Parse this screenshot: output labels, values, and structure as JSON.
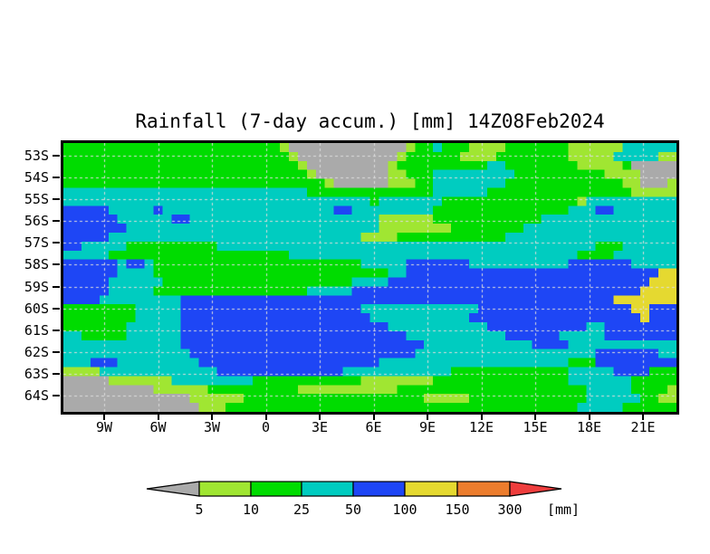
{
  "title": "Rainfall (7-day accum.) [mm] 14Z08Feb2024",
  "chart_data": {
    "type": "heatmap",
    "title": "Rainfall (7-day accum.) [mm] 14Z08Feb2024",
    "variable": "Rainfall (7-day accum.)",
    "units": "mm",
    "valid_time": "14Z08Feb2024",
    "x_axis": {
      "ticks": [
        "9W",
        "6W",
        "3W",
        "0",
        "3E",
        "6E",
        "9E",
        "12E",
        "15E",
        "18E",
        "21E"
      ],
      "range_deg_lon": [
        -11.3,
        22.9
      ]
    },
    "y_axis": {
      "ticks": [
        "53S",
        "54S",
        "55S",
        "56S",
        "57S",
        "58S",
        "59S",
        "60S",
        "61S",
        "62S",
        "63S",
        "64S"
      ],
      "range_deg_lat": [
        -52.4,
        -64.7
      ]
    },
    "grid_on": true,
    "grid_line_color": "#dcdcdc",
    "legend": {
      "position": "bottom",
      "labels": [
        "5",
        "10",
        "25",
        "50",
        "100",
        "150",
        "300"
      ],
      "unit_label": "[mm]",
      "box_keys": [
        "L",
        "G",
        "C",
        "B",
        "Y",
        "O"
      ],
      "arrow_low_key": "A",
      "arrow_high_key": "R"
    },
    "palette": {
      "A": "#aaaaaa",
      "L": "#a0e632",
      "G": "#00dc00",
      "C": "#00ccc0",
      "B": "#1e46f5",
      "Y": "#e5d930",
      "O": "#ec7d2d",
      "R": "#ee3d3d"
    },
    "value_bins": {
      "A": "<5",
      "L": "5-10",
      "G": "10-25",
      "C": "25-50",
      "B": "50-100",
      "Y": "100-150",
      "O": "150-300",
      "R": ">300"
    },
    "grid": {
      "cols": 68,
      "rows_count": 30,
      "rows": [
        "GGGGGGGGGGGGGGGGGGGGGGGGLAAAAAAAAAAAAALGGCGGGLLLLGGGGGGGLLLLLLCCCCCC",
        "GGGGGGGGGGGGGGGGGGGGGGGGGLAAAAAAAAAAALGGGGGGLLLLGGGGGGGGLLLLLCCCCCLL",
        "GGGGGGGGGGGGGGGGGGGGGGGGGGLAAAAAAAAALGGGGGGGGGGCCGGGGGGGGLLLLLGAAAAA",
        "GGGGGGGGGGGGGGGGGGGGGGGGGGGLAAAAAAAALLGGGCCCCCCCCCGGGGGGGGGGLLLLAAAA",
        "GGGGGGGGGGGGGGGGGGGGGGGGGGGGGLAAAAAALLLGGCCCCCCCCGGGGGGGGGGGGGLLAAAL",
        "CCCCCCCCCCCCCCCCCCCCCCCCCCCGGGGGGGGGGGGGGCCCCCCGGGGGGGGGGGGGGGGLLLLL",
        "CCCCCCCCCCCCCCCCCCCCCCCCCCCCCCCCCCGCCCCCCCGGGGGGGGGGGGGGGLCCCCCCCCCC",
        "BBBBBCCCCCBCCCCCCCCCCCCCCCCCCCBBCCCCCCCCCGGGGGGGGGGGGGGGCCCBBCCCCCCC",
        "BBBBBBCCCCCCBBCCCCCCCCCCCCCCCCCCCCCLLLLLLGGGGGGGGGGGGCCCCCCCCCCCCCCC",
        "BBBBBBBCCCCCCCCCCCCCCCCCCCCCCCCCCCCLLLLLLLLGGGGGGGGCCCCCCCCCCCCCCCCC",
        "BBBBBCCCCCCCCCCCCCCCCCCCCCCCCCCCCLLLLGGGGGGGGGGGGCCCCCCCCCCCCCCCCCCC",
        "BBCCCCCGGGGGGGGGGCCCCCCCCCCCCCCCCCCCCCCCCCCCCCCCCCCCCCCCCCCGGGCCCCC",
        "CCCCCGGGGGGGGGGGGGGGGGGGGCCCCCCCCCCCCCCCCCCCCCCCCCCCCCCCCGGGGCCCCCC",
        "BBBBBBCBBCGGGGGGGGGGGGGGGGGGGGGGGCCCCCBBBBBBBCCCCCCCCCCCBBBBBBBCCCCC",
        "BBBBBBCCCCGGGGGGGGGGGGGGGGGGGGGGGGGGCCBBBBBBBBBBBBBBBBBBBBBBBBBBBBYY",
        "BBBBBCCCCCCGGGGGGGGGGGGGGGGGGGGGCCCCBBBBBBBBBBBBBBBBBBBBBBBBBBBBBYYY",
        "BBBBBCCCCCGGGGGGGGGGGGGGGGGCCCCCBBBBBBBBBBBBBBBBBBBBBBBBBBBBBBBBYYYY",
        "BBBBCCCCCCCCCBBBBBBBBBBBBBBBBBBBBBBBBBBBBBBBBBBBBBBBBBBBBBBBBYYYYY",
        "GGGGGGGGCCCCCBBBBBBBBBBBBBBBBBBBBCCCCCCCCCCCCCBBBBBBBBBBBBBBBBBYYBB",
        "GGGGGGGGCCCCCBBBBBBBBBBBBBBBBBBBBBCCCCCCCCCCCBBBBBBBBBBBBBBBBBBBYBB",
        "GGGGGGGCCCCCCBBBBBBBBBBBBBBBBBBBBBBBCCCCCCCCCCCBBBBBBBBBBBCCBBBBBBB",
        "CCGGGGGCCCCCCBBBBBBBBBBBBBBBBBBBBBBBBBCCCCCCCCCCCBBBBBBCCCCCBBBBBBB",
        "CCCCCCCCCCCCCBBBBBBBBBBBBBBBBBBBBBBBBBBBCCCCCCCCCCCCBBBBCCCCCCCCCCC",
        "CCCCCCCCCCCCCCBBBBBBBBBBBBBBBBBBBBBBBBBCCCCCCCCCCCCCCCCCCCCBBBBBBBCC",
        "CCCBBBCCCCCCCCCBBBBBBBBBBBBBBBBBBBBCCCCCCCCCCCCCCCCCCCCCGGGBBBBBBBBB",
        "LLLLCCCCCCCCCCCCCBBBBBBBBBBBBBBCCCCCCCCCCCCGGGGGGGGGGGGGCCCCCBBBBGGG",
        "AAAAALLLLLLLCCCCCCCCCGGGGGGGGGGGGLLLLLLLLGGGGGGGGGGGGGGGCCCCCCCGGGGG",
        "AAAAAAAAAALLLLLLGGGGGGGGGGLLLLLLLLLLLGGGGGGGGGGGGGGGGGGGGGCCCCCGGGGL",
        "AAAAAAAAAAAAAALLLLLLGGGGGGGGGGGGGGGGGGGGLLLLLGGGGGGGGGGGGGCCCCCCGGLL",
        "AAAAAAAAAAAAAAALLLGGGGGGGGGGGGGGGGGGGGGGGGGGGGGGGGGGGGGGGCCCCCGGGGG"
      ]
    }
  }
}
